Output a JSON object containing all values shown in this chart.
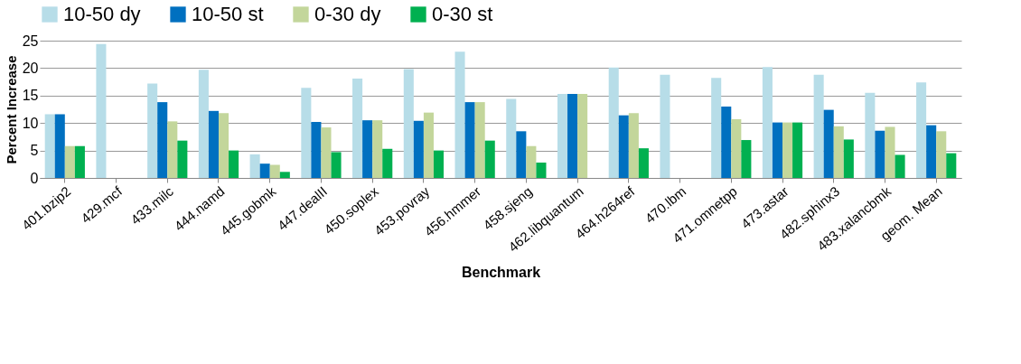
{
  "chart_data": {
    "type": "bar",
    "xlabel": "Benchmark",
    "ylabel": "Percent Increase",
    "categories": [
      "401.bzip2",
      "429.mcf",
      "433.milc",
      "444.namd",
      "445.gobmk",
      "447.dealII",
      "450.soplex",
      "453.povray",
      "456.hmmer",
      "458.sjeng",
      "462.libquantum",
      "464.h264ref",
      "470.lbm",
      "471.omnetpp",
      "473.astar",
      "482.sphinx3",
      "483.xalancbmk",
      "geom. Mean"
    ],
    "series": [
      {
        "name": "10-50 dy",
        "color": "#b7dde8",
        "values": [
          11.6,
          24.4,
          17.2,
          19.7,
          4.3,
          16.4,
          18.1,
          19.8,
          23.0,
          14.4,
          15.3,
          20.1,
          18.8,
          18.2,
          20.2,
          18.8,
          15.5,
          17.4
        ]
      },
      {
        "name": "10-50 st",
        "color": "#0070c0",
        "values": [
          11.6,
          null,
          13.8,
          12.2,
          2.6,
          10.2,
          10.5,
          10.4,
          13.8,
          8.5,
          15.3,
          11.4,
          null,
          13.0,
          10.1,
          12.4,
          8.6,
          9.6
        ]
      },
      {
        "name": "0-30 dy",
        "color": "#c3d69b",
        "values": [
          5.8,
          null,
          10.3,
          11.8,
          2.4,
          9.2,
          10.5,
          11.9,
          13.8,
          5.8,
          15.3,
          11.8,
          null,
          10.7,
          10.1,
          9.4,
          9.3,
          8.5
        ]
      },
      {
        "name": "0-30 st",
        "color": "#00b050",
        "values": [
          5.8,
          null,
          6.8,
          5.0,
          1.1,
          4.7,
          5.3,
          5.0,
          6.8,
          2.8,
          null,
          5.4,
          null,
          6.9,
          10.1,
          7.0,
          4.2,
          4.5
        ]
      }
    ],
    "ylim": [
      0,
      25
    ],
    "yticks": [
      0,
      5,
      10,
      15,
      20,
      25
    ],
    "grid": "y",
    "legend": "top"
  }
}
